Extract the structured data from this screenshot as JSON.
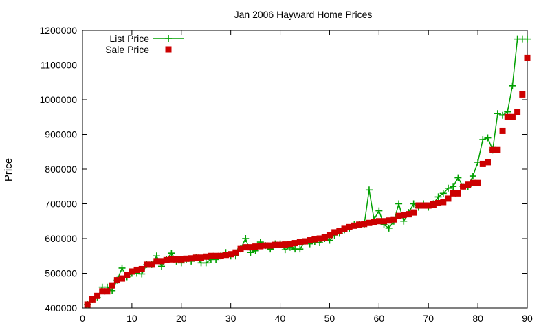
{
  "chart_data": {
    "type": "line",
    "title": "Jan 2006 Hayward Home Prices",
    "xlabel": "",
    "ylabel": "Price",
    "xlim": [
      0,
      90
    ],
    "ylim": [
      400000,
      1200000
    ],
    "x_ticks": [
      0,
      10,
      20,
      30,
      40,
      50,
      60,
      70,
      80,
      90
    ],
    "y_ticks": [
      400000,
      500000,
      600000,
      700000,
      800000,
      900000,
      1000000,
      1100000,
      1200000
    ],
    "grid": false,
    "legend_position": "top-left",
    "series": [
      {
        "name": "List Price",
        "color": "#00a000",
        "marker": "plus",
        "line": true,
        "x": [
          1,
          2,
          3,
          4,
          5,
          6,
          7,
          8,
          9,
          10,
          11,
          12,
          13,
          14,
          15,
          16,
          17,
          18,
          19,
          20,
          21,
          22,
          23,
          24,
          25,
          26,
          27,
          28,
          29,
          30,
          31,
          32,
          33,
          34,
          35,
          36,
          37,
          38,
          39,
          40,
          41,
          42,
          43,
          44,
          45,
          46,
          47,
          48,
          49,
          50,
          51,
          52,
          53,
          54,
          55,
          56,
          57,
          58,
          59,
          60,
          61,
          62,
          63,
          64,
          65,
          66,
          67,
          68,
          69,
          70,
          71,
          72,
          73,
          74,
          75,
          76,
          77,
          78,
          79,
          80,
          81,
          82,
          83,
          84,
          85,
          86,
          87,
          88,
          89,
          90
        ],
        "values": [
          410000,
          425000,
          430000,
          460000,
          460000,
          450000,
          480000,
          515000,
          490000,
          500000,
          500000,
          498000,
          525000,
          525000,
          550000,
          520000,
          540000,
          558000,
          535000,
          530000,
          540000,
          535000,
          545000,
          530000,
          530000,
          540000,
          540000,
          550000,
          560000,
          550000,
          550000,
          570000,
          600000,
          560000,
          565000,
          590000,
          580000,
          570000,
          585000,
          585000,
          568000,
          575000,
          570000,
          570000,
          590000,
          585000,
          590000,
          588000,
          600000,
          595000,
          610000,
          615000,
          625000,
          630000,
          640000,
          640000,
          640000,
          740000,
          655000,
          680000,
          640000,
          630000,
          650000,
          700000,
          650000,
          675000,
          700000,
          690000,
          700000,
          690000,
          700000,
          720000,
          730000,
          745000,
          750000,
          775000,
          750000,
          750000,
          780000,
          820000,
          885000,
          890000,
          855000,
          960000,
          955000,
          965000,
          1040000,
          1175000,
          1175000,
          1175000
        ]
      },
      {
        "name": "Sale Price",
        "color": "#cc0000",
        "marker": "square",
        "line": false,
        "x": [
          1,
          2,
          3,
          4,
          5,
          6,
          7,
          8,
          9,
          10,
          11,
          12,
          13,
          14,
          15,
          16,
          17,
          18,
          19,
          20,
          21,
          22,
          23,
          24,
          25,
          26,
          27,
          28,
          29,
          30,
          31,
          32,
          33,
          34,
          35,
          36,
          37,
          38,
          39,
          40,
          41,
          42,
          43,
          44,
          45,
          46,
          47,
          48,
          49,
          50,
          51,
          52,
          53,
          54,
          55,
          56,
          57,
          58,
          59,
          60,
          61,
          62,
          63,
          64,
          65,
          66,
          67,
          68,
          69,
          70,
          71,
          72,
          73,
          74,
          75,
          76,
          77,
          78,
          79,
          80,
          81,
          82,
          83,
          84,
          85,
          86,
          87,
          88,
          89,
          90
        ],
        "values": [
          410000,
          425000,
          435000,
          448000,
          448000,
          465000,
          480000,
          485000,
          495000,
          505000,
          510000,
          512000,
          525000,
          525000,
          535000,
          535000,
          538000,
          540000,
          540000,
          540000,
          542000,
          543000,
          545000,
          545000,
          548000,
          550000,
          550000,
          550000,
          553000,
          555000,
          560000,
          570000,
          575000,
          575000,
          577000,
          578000,
          580000,
          580000,
          582000,
          582000,
          583000,
          585000,
          587000,
          590000,
          592000,
          595000,
          598000,
          600000,
          603000,
          610000,
          618000,
          622000,
          628000,
          633000,
          637000,
          640000,
          642000,
          645000,
          648000,
          650000,
          650000,
          652000,
          655000,
          665000,
          668000,
          670000,
          675000,
          695000,
          695000,
          695000,
          698000,
          702000,
          705000,
          715000,
          730000,
          730000,
          750000,
          755000,
          760000,
          760000,
          815000,
          820000,
          855000,
          855000,
          910000,
          950000,
          950000,
          965000,
          1015000,
          1120000
        ]
      }
    ]
  }
}
